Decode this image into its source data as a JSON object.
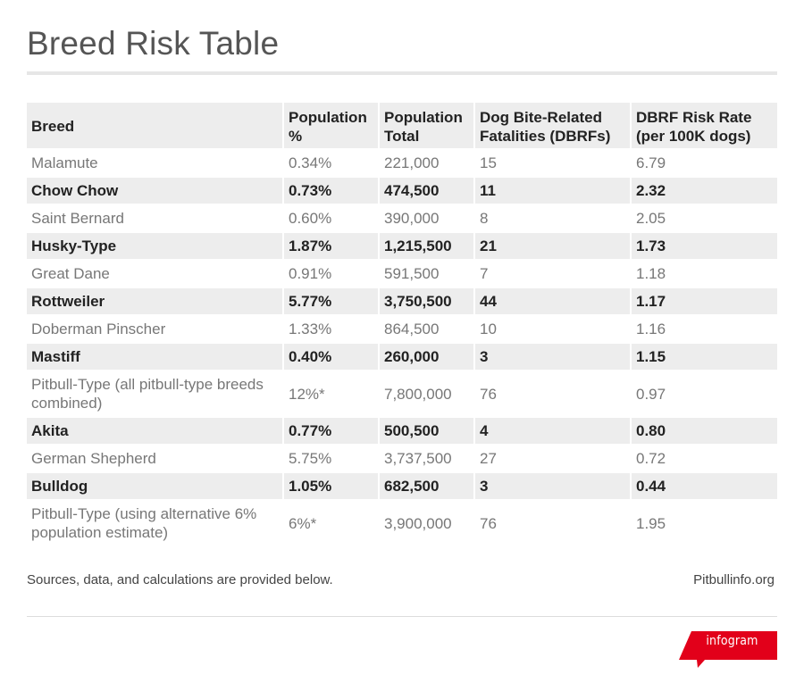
{
  "title": "Breed Risk Table",
  "chart_data": {
    "type": "table",
    "columns": [
      "Breed",
      "Population %",
      "Population Total",
      "Dog Bite-Related Fatalities (DBRFs)",
      "DBRF Risk Rate (per 100K dogs)"
    ],
    "rows": [
      [
        "Malamute",
        "0.34%",
        "221,000",
        "15",
        "6.79"
      ],
      [
        "Chow Chow",
        "0.73%",
        "474,500",
        "11",
        "2.32"
      ],
      [
        "Saint Bernard",
        "0.60%",
        "390,000",
        "8",
        "2.05"
      ],
      [
        "Husky-Type",
        "1.87%",
        "1,215,500",
        "21",
        "1.73"
      ],
      [
        "Great Dane",
        "0.91%",
        "591,500",
        "7",
        "1.18"
      ],
      [
        "Rottweiler",
        "5.77%",
        "3,750,500",
        "44",
        "1.17"
      ],
      [
        "Doberman Pinscher",
        "1.33%",
        "864,500",
        "10",
        "1.16"
      ],
      [
        "Mastiff",
        "0.40%",
        "260,000",
        "3",
        "1.15"
      ],
      [
        "Pitbull-Type (all pitbull-type breeds combined)",
        "12%*",
        "7,800,000",
        "76",
        "0.97"
      ],
      [
        "Akita",
        "0.77%",
        "500,500",
        "4",
        "0.80"
      ],
      [
        "German Shepherd",
        "5.75%",
        "3,737,500",
        "27",
        "0.72"
      ],
      [
        "Bulldog",
        "1.05%",
        "682,500",
        "3",
        "0.44"
      ],
      [
        "Pitbull-Type (using alternative 6% population estimate)",
        "6%*",
        "3,900,000",
        "76",
        "1.95"
      ]
    ]
  },
  "footnote": "Sources, data, and calculations are provided below.",
  "source": "Pitbullinfo.org",
  "brand": {
    "label": "infogram",
    "color": "#e2001a"
  },
  "colors": {
    "header_bg": "#ededed",
    "stripe_bg": "#ededed",
    "rule": "#e6e6e6"
  }
}
